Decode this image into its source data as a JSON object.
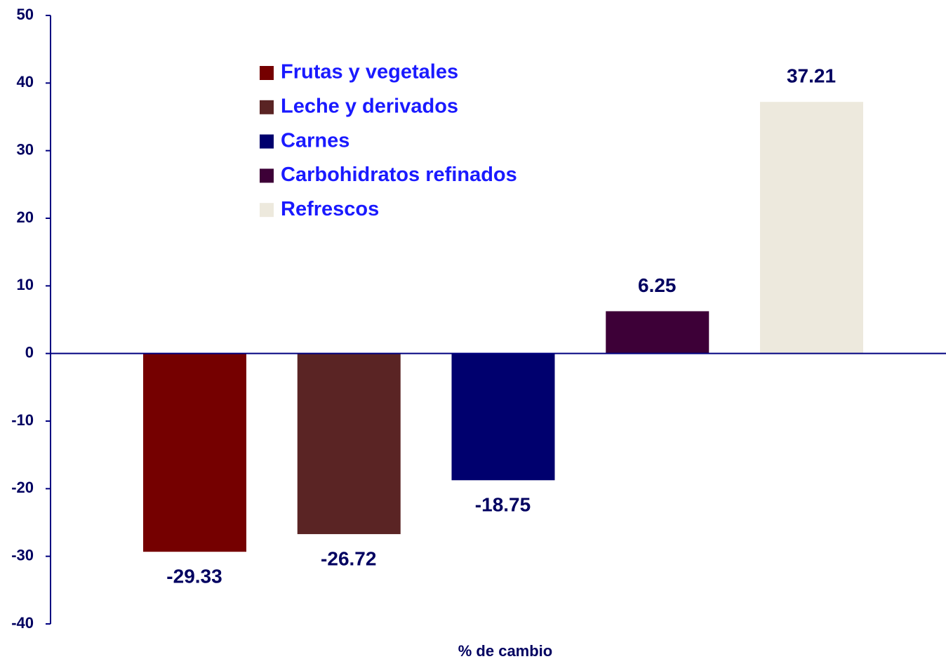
{
  "chart_data": {
    "type": "bar",
    "xlabel": "% de cambio",
    "series": [
      {
        "name": "Frutas y vegetales",
        "color": "#750000",
        "values": [
          -29.33
        ]
      },
      {
        "name": "Leche y derivados",
        "color": "#5a2424",
        "values": [
          -26.72
        ]
      },
      {
        "name": "Carnes",
        "color": "#00006e",
        "values": [
          -18.75
        ]
      },
      {
        "name": "Carbohidratos refinados",
        "color": "#3d0037",
        "values": [
          6.25
        ]
      },
      {
        "name": "Refrescos",
        "color": "#ede9dd",
        "values": [
          37.21
        ]
      }
    ],
    "ylim": [
      -40,
      50
    ],
    "yticks": [
      -40,
      -30,
      -20,
      -10,
      0,
      10,
      20,
      30,
      40,
      50
    ],
    "grid": false
  }
}
